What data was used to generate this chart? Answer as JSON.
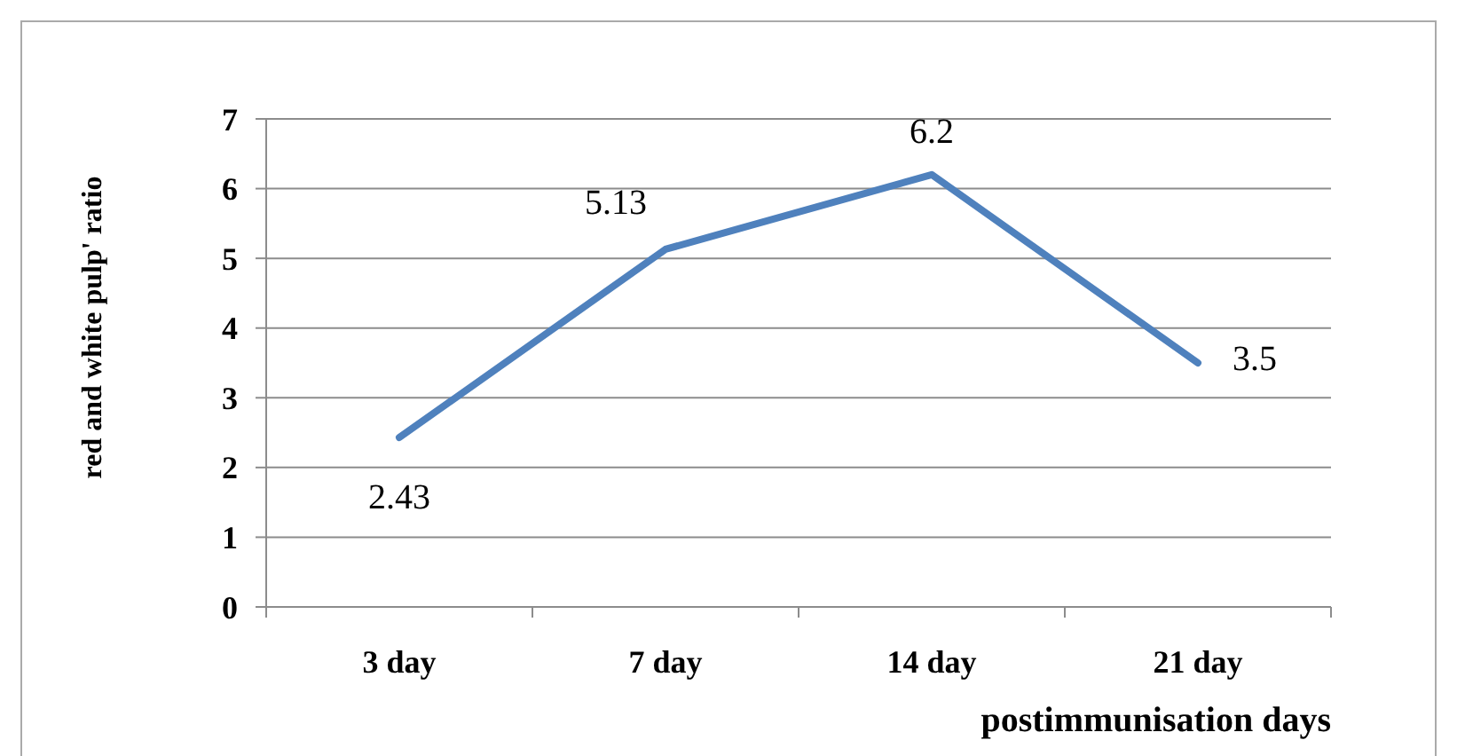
{
  "chart_data": {
    "type": "line",
    "xlabel": "postimmunisation days",
    "ylabel": "red and white pulp' ratio",
    "categories": [
      "3 day",
      "7 day",
      "14 day",
      "21 day"
    ],
    "series": [
      {
        "color": "#4f81bd",
        "values": [
          2.43,
          5.13,
          6.2,
          3.5
        ]
      }
    ],
    "ylim": [
      0,
      7
    ],
    "yticks": [
      0,
      1,
      2,
      3,
      4,
      5,
      6,
      7
    ],
    "grid": "y",
    "data_labels": true,
    "marker": "none",
    "line_style": "solid"
  }
}
